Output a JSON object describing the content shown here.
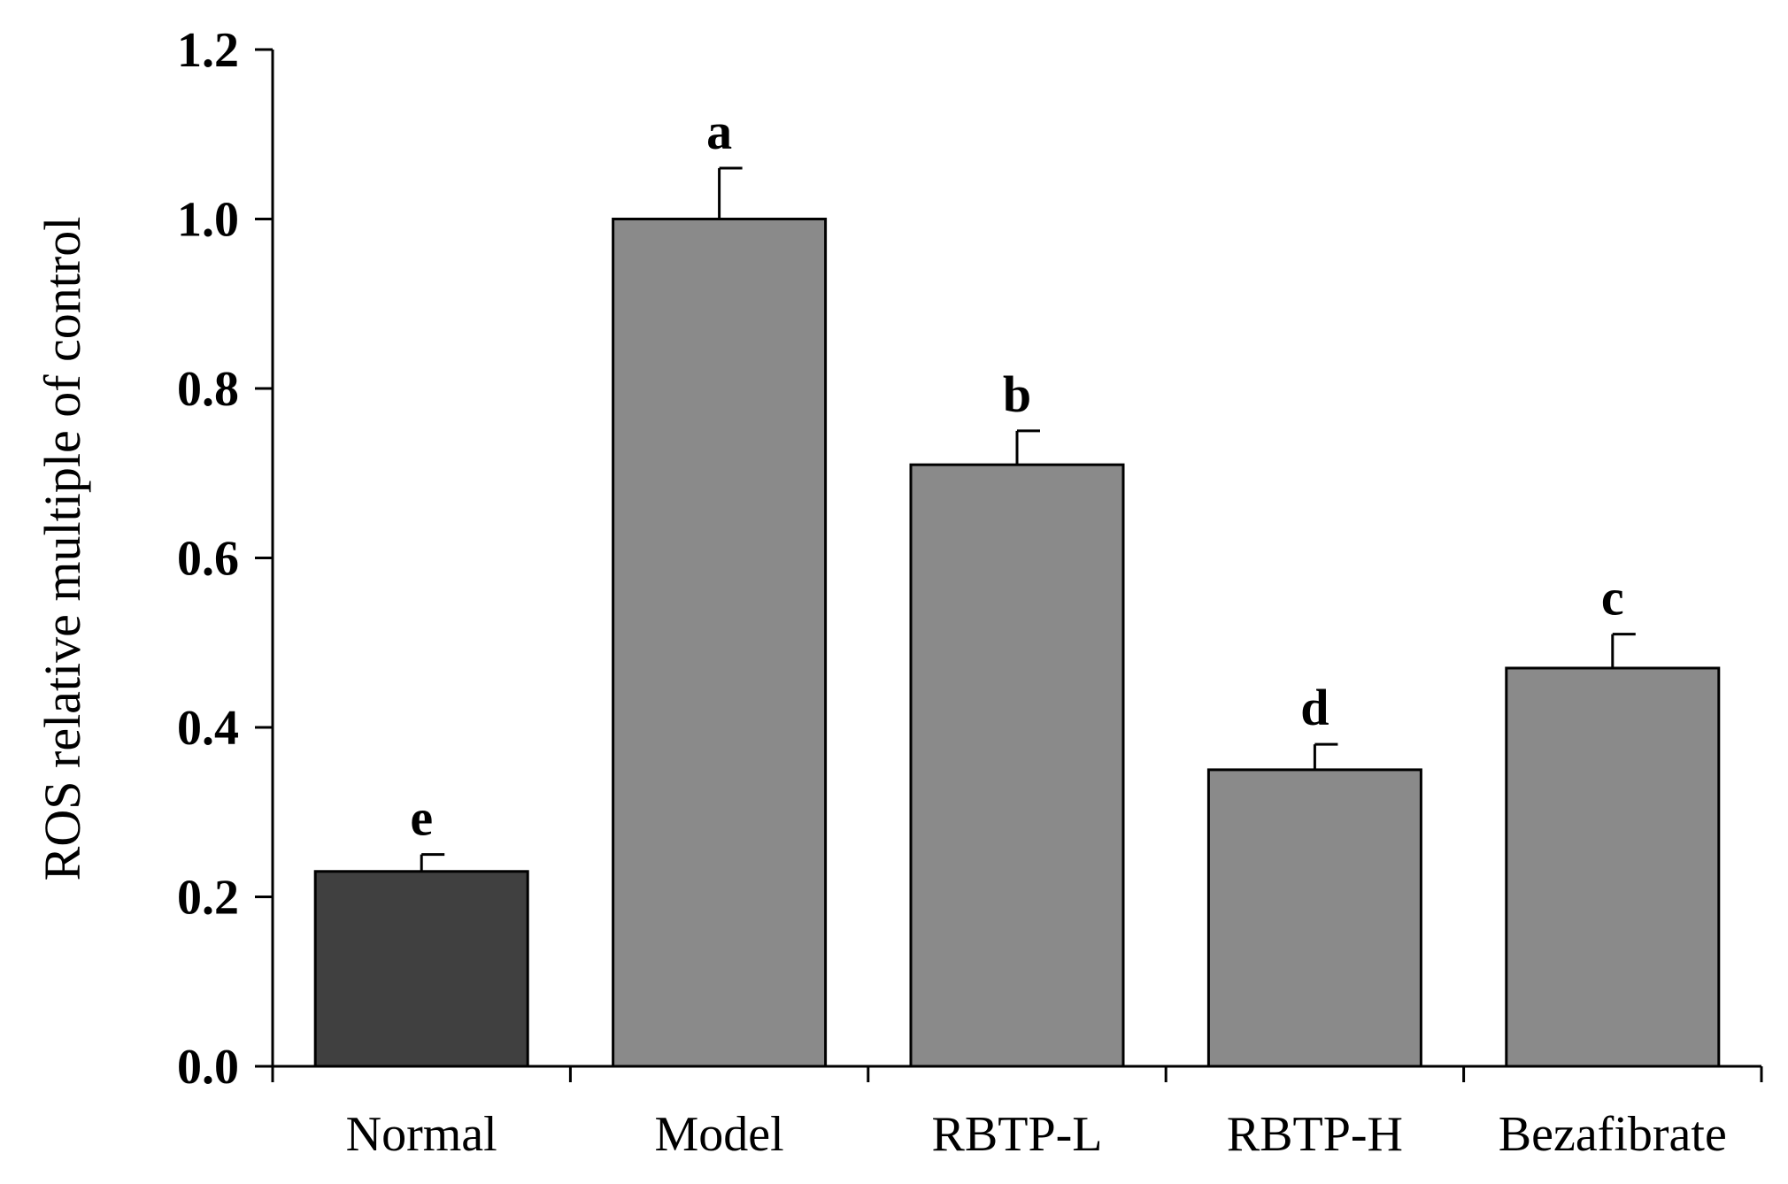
{
  "chart_data": {
    "type": "bar",
    "ylabel": "ROS relative multiple of control",
    "xlabel": "",
    "ylim": [
      0,
      1.2
    ],
    "yticks": [
      "0.0",
      "0.2",
      "0.4",
      "0.6",
      "0.8",
      "1.0",
      "1.2"
    ],
    "grid": false,
    "categories": [
      "Normal",
      "Model",
      "RBTP-L",
      "RBTP-H",
      "Bezafibrate"
    ],
    "values": [
      0.23,
      1.0,
      0.71,
      0.35,
      0.47
    ],
    "errors": [
      0.02,
      0.06,
      0.04,
      0.03,
      0.04
    ],
    "significance": [
      "e",
      "a",
      "b",
      "d",
      "c"
    ],
    "colors": [
      "#404040",
      "#8a8a8a",
      "#8a8a8a",
      "#8a8a8a",
      "#8a8a8a"
    ]
  }
}
